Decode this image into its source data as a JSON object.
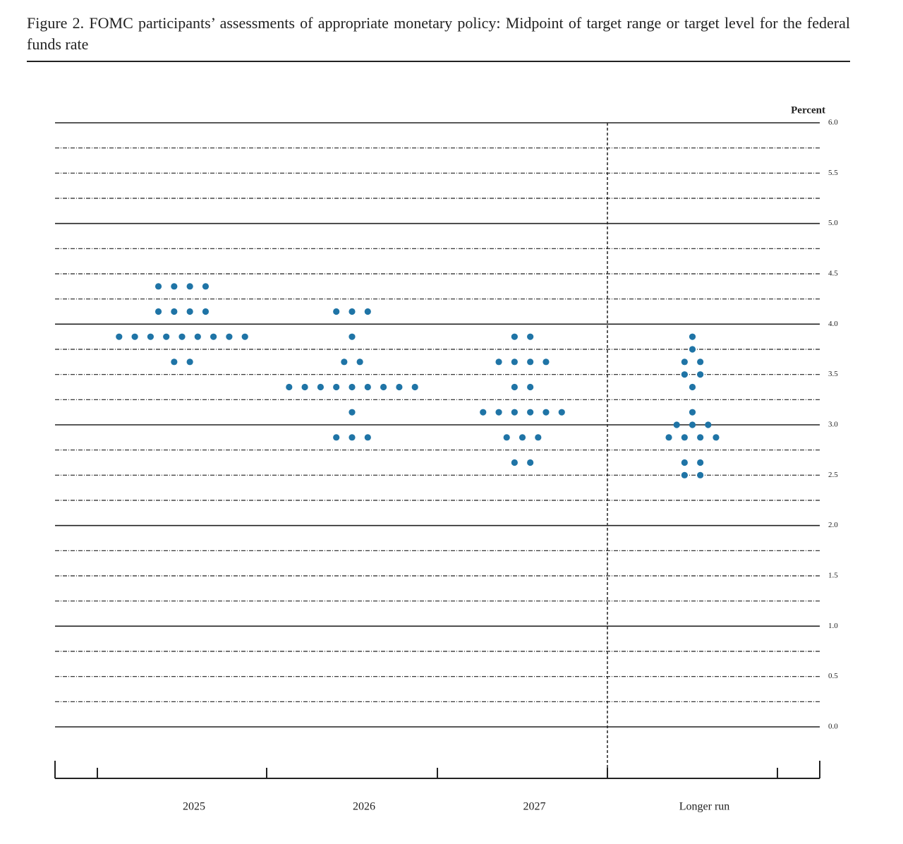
{
  "chart_data": {
    "type": "dot_plot",
    "title": "Figure 2.  FOMC participants’ assessments of appropriate monetary policy: Midpoint of target range or target level for the federal funds rate",
    "y_axis_label": "Percent",
    "categories": [
      "2025",
      "2026",
      "2027",
      "Longer run"
    ],
    "color": "#1f74a6",
    "values": [
      [
        4.375,
        4.375,
        4.375,
        4.375,
        4.125,
        4.125,
        4.125,
        4.125,
        3.875,
        3.875,
        3.875,
        3.875,
        3.875,
        3.875,
        3.875,
        3.875,
        3.875,
        3.625,
        3.625
      ],
      [
        4.125,
        4.125,
        4.125,
        3.875,
        3.625,
        3.625,
        3.375,
        3.375,
        3.375,
        3.375,
        3.375,
        3.375,
        3.375,
        3.375,
        3.375,
        3.125,
        2.875,
        2.875,
        2.875
      ],
      [
        3.875,
        3.875,
        3.625,
        3.625,
        3.625,
        3.625,
        3.375,
        3.375,
        3.125,
        3.125,
        3.125,
        3.125,
        3.125,
        3.125,
        2.875,
        2.875,
        2.875,
        2.625,
        2.625
      ],
      [
        3.875,
        3.75,
        3.625,
        3.625,
        3.5,
        3.5,
        3.375,
        3.125,
        3.0,
        3.0,
        3.0,
        2.875,
        2.875,
        2.875,
        2.875,
        2.625,
        2.625,
        2.5,
        2.5
      ]
    ],
    "ylim": [
      0,
      6
    ],
    "yticks": [
      {
        "value": 0,
        "label": "0.0"
      },
      0.5,
      {
        "value": 1,
        "label": "1.0"
      },
      1.5,
      {
        "value": 2,
        "label": "2.0"
      },
      2.5,
      {
        "value": 3,
        "label": "3.0"
      },
      3.5,
      {
        "value": 4,
        "label": "4.0"
      },
      4.5,
      {
        "value": 5,
        "label": "5.0"
      },
      5.5,
      {
        "value": 6,
        "label": "6.0"
      }
    ],
    "minor_yticks": [
      0.25,
      0.75,
      1.25,
      1.75,
      2.25,
      2.75,
      3.25,
      3.75,
      4.25,
      4.75,
      5.25,
      5.75
    ],
    "grid": true
  }
}
